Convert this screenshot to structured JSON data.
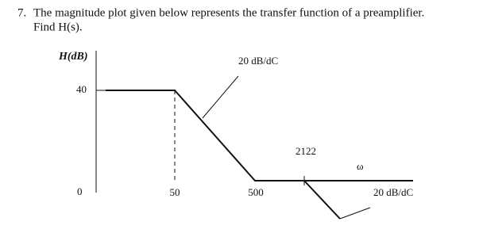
{
  "question": {
    "number": "7.",
    "text": "The magnitude plot given below represents the transfer function of a preamplifier.",
    "subtext": "Find H(s)."
  },
  "plot": {
    "y_label": "H(dB)",
    "y_tick": "40",
    "x_origin": "0",
    "x_ticks": [
      "50",
      "500"
    ],
    "annotations": [
      "20 dB/dC",
      "2122",
      "ω",
      "20 dB/dC"
    ]
  }
}
